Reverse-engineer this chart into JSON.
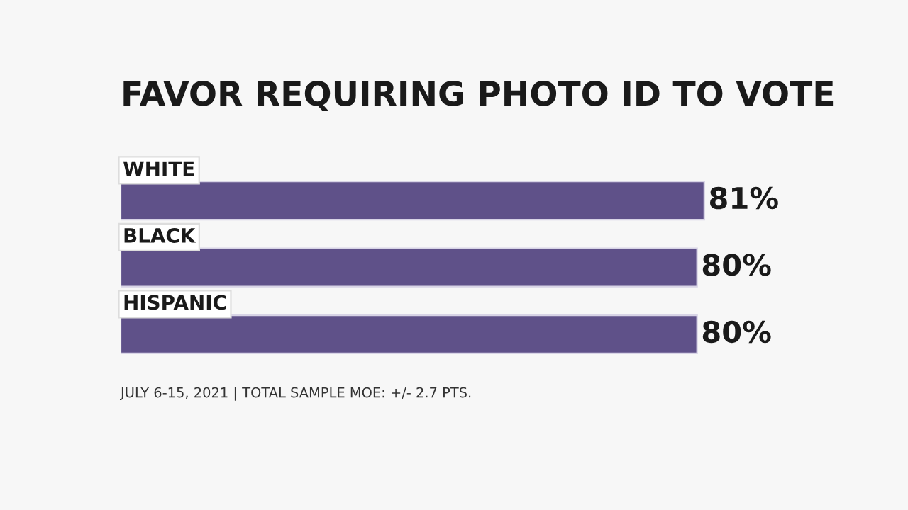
{
  "chart_data": {
    "type": "bar",
    "orientation": "horizontal",
    "title": "FAVOR REQUIRING PHOTO ID TO VOTE",
    "categories": [
      "WHITE",
      "BLACK",
      "HISPANIC"
    ],
    "values": [
      81,
      80,
      80
    ],
    "value_labels": [
      "81%",
      "80%",
      "80%"
    ],
    "color": "#5f5189",
    "annotations": [
      "JULY 6-15, 2021 | TOTAL SAMPLE MOE: +/- 2.7 PTS."
    ]
  }
}
